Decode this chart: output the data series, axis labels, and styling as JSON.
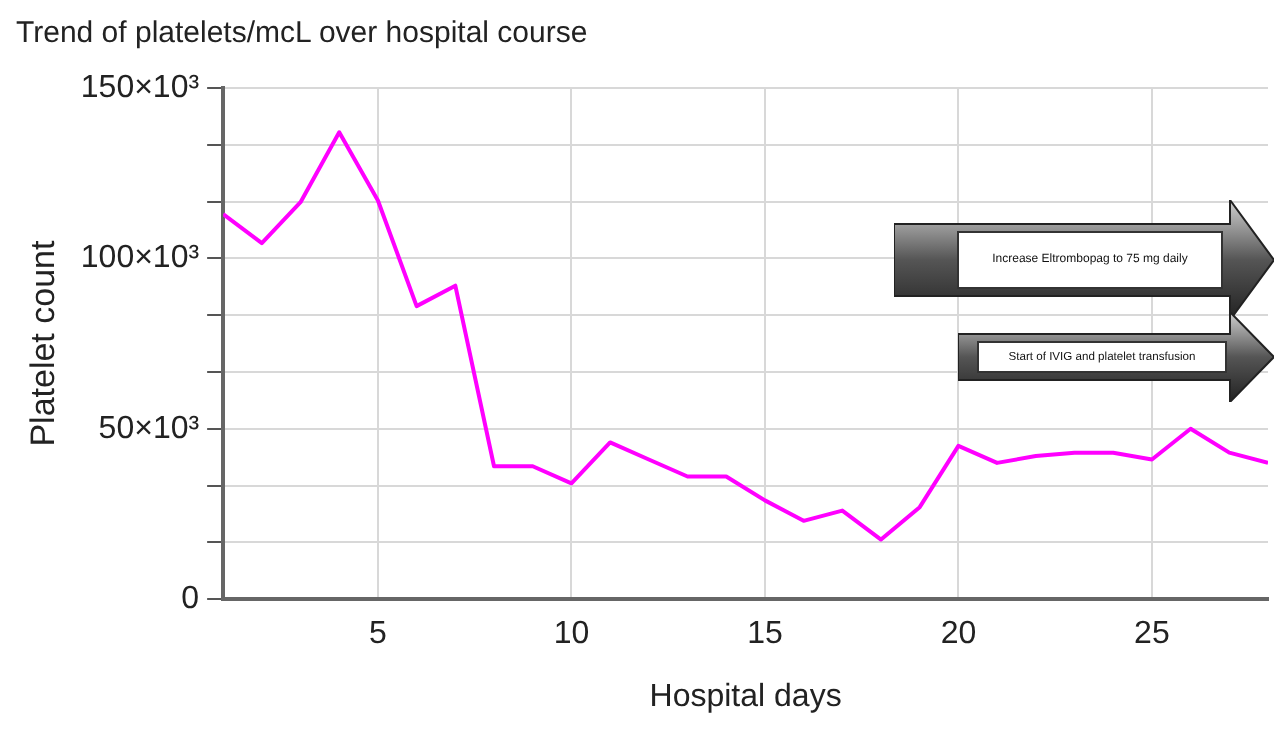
{
  "chart_data": {
    "type": "line",
    "title": "Trend of platelets/mcL over hospital course",
    "xlabel": "Hospital days",
    "ylabel": "Platelet count",
    "x": [
      1,
      2,
      3,
      4,
      5,
      6,
      7,
      8,
      9,
      10,
      11,
      12,
      13,
      14,
      15,
      16,
      17,
      18,
      19,
      20,
      21,
      22,
      23,
      24,
      25,
      26,
      27,
      28
    ],
    "series": [
      {
        "color": "#ff00ff",
        "values": [
          113000,
          104500,
          116500,
          137000,
          117000,
          86000,
          92000,
          39000,
          39000,
          34000,
          46000,
          41000,
          36000,
          36000,
          29000,
          23000,
          26000,
          17500,
          27000,
          45000,
          40000,
          42000,
          43000,
          43000,
          41000,
          50000,
          43000,
          40000
        ]
      }
    ],
    "xlim": [
      1,
      28
    ],
    "xticks": [
      5,
      10,
      15,
      20,
      25
    ],
    "ylim": [
      0,
      150000
    ],
    "yticks": [
      {
        "value": 0,
        "label": "0"
      },
      {
        "value": 16667,
        "label": null
      },
      {
        "value": 33333,
        "label": null
      },
      {
        "value": 50000,
        "label": "50×10³"
      },
      {
        "value": 66667,
        "label": null
      },
      {
        "value": 83333,
        "label": null
      },
      {
        "value": 100000,
        "label": "100×10³"
      },
      {
        "value": 116667,
        "label": null
      },
      {
        "value": 133333,
        "label": null
      },
      {
        "value": 150000,
        "label": "150×10³"
      }
    ],
    "grid": true,
    "legend": false,
    "marker": "none",
    "line_style": "solid",
    "annotations": [
      "Increase Eltrombopag to 75 mg daily",
      "Start of IVIG and platelet transfusion"
    ]
  }
}
